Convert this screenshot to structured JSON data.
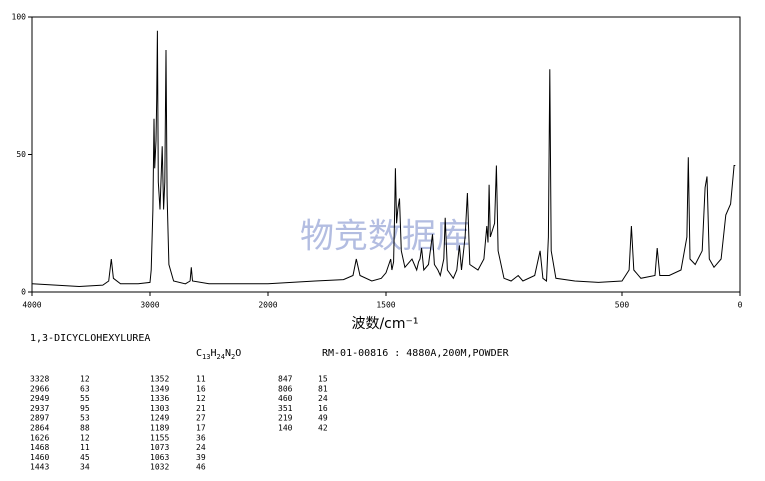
{
  "chart_data": {
    "type": "line",
    "xlabel": "波数/cm⁻¹",
    "xlim": [
      4000,
      0
    ],
    "xticks": [
      4000,
      3000,
      2000,
      1500,
      500,
      0
    ],
    "x_compressed_above": 2000,
    "ylim": [
      0,
      100
    ],
    "yticks": [
      0,
      50,
      100
    ],
    "color": "#000000",
    "watermark": "物竞数据库",
    "x": [
      4000,
      3600,
      3400,
      3350,
      3328,
      3310,
      3250,
      3100,
      3000,
      2990,
      2975,
      2966,
      2960,
      2949,
      2943,
      2937,
      2930,
      2915,
      2897,
      2885,
      2875,
      2864,
      2855,
      2840,
      2800,
      2700,
      2660,
      2650,
      2640,
      2500,
      2200,
      2000,
      1800,
      1680,
      1640,
      1626,
      1610,
      1560,
      1520,
      1500,
      1480,
      1475,
      1468,
      1463,
      1460,
      1455,
      1450,
      1443,
      1435,
      1420,
      1390,
      1370,
      1362,
      1356,
      1349,
      1340,
      1320,
      1303,
      1295,
      1280,
      1270,
      1255,
      1249,
      1240,
      1215,
      1200,
      1189,
      1180,
      1165,
      1155,
      1145,
      1110,
      1085,
      1073,
      1068,
      1063,
      1058,
      1040,
      1032,
      1025,
      1000,
      970,
      940,
      920,
      870,
      847,
      835,
      820,
      812,
      806,
      800,
      780,
      700,
      600,
      500,
      470,
      460,
      450,
      420,
      360,
      351,
      340,
      300,
      250,
      225,
      219,
      212,
      190,
      160,
      148,
      140,
      130,
      110,
      80,
      60,
      40,
      25,
      20
    ],
    "values": [
      3,
      2,
      2.5,
      4,
      12,
      5,
      3,
      3,
      3.5,
      8,
      30,
      63,
      45,
      55,
      70,
      95,
      40,
      30,
      53,
      30,
      40,
      88,
      35,
      10,
      4,
      3,
      4,
      9,
      4,
      3,
      3,
      3,
      4,
      4.5,
      6,
      12,
      6,
      4,
      5,
      7,
      12,
      8,
      11,
      30,
      45,
      25,
      30,
      34,
      15,
      9,
      12,
      8,
      11,
      12,
      16,
      8,
      10,
      21,
      10,
      8,
      6,
      12,
      27,
      8,
      5,
      8,
      17,
      8,
      20,
      36,
      10,
      8,
      12,
      24,
      18,
      39,
      20,
      25,
      46,
      15,
      5,
      4,
      6,
      4,
      6,
      15,
      5,
      4,
      20,
      81,
      15,
      5,
      4,
      3.5,
      4,
      8,
      24,
      8,
      5,
      6,
      16,
      6,
      6,
      8,
      20,
      49,
      12,
      10,
      15,
      38,
      42,
      12,
      9,
      12,
      28,
      32,
      46,
      46
    ]
  },
  "sample": {
    "name": "1,3-DICYCLOHEXYLUREA",
    "formula": [
      "C",
      "13",
      "H",
      "24",
      "N",
      "2",
      "O"
    ],
    "info": "RM-01-00816 : 4880A,200M,POWDER"
  },
  "peak_table": [
    [
      3328,
      12
    ],
    [
      2966,
      63
    ],
    [
      2949,
      55
    ],
    [
      2937,
      95
    ],
    [
      2897,
      53
    ],
    [
      2864,
      88
    ],
    [
      1626,
      12
    ],
    [
      1468,
      11
    ],
    [
      1460,
      45
    ],
    [
      1443,
      34
    ],
    [
      1352,
      11
    ],
    [
      1349,
      16
    ],
    [
      1336,
      12
    ],
    [
      1303,
      21
    ],
    [
      1249,
      27
    ],
    [
      1189,
      17
    ],
    [
      1155,
      36
    ],
    [
      1073,
      24
    ],
    [
      1063,
      39
    ],
    [
      1032,
      46
    ],
    [
      847,
      15
    ],
    [
      806,
      81
    ],
    [
      460,
      24
    ],
    [
      351,
      16
    ],
    [
      219,
      49
    ],
    [
      140,
      42
    ]
  ]
}
